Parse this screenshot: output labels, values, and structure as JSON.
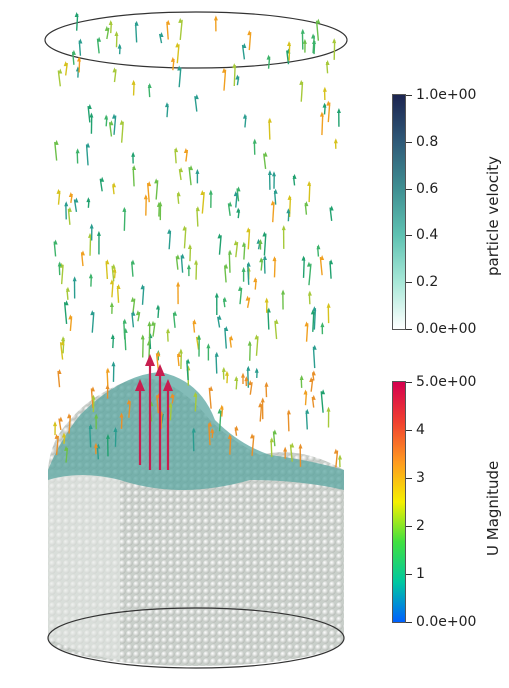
{
  "scene": {
    "description_icon": "cylinder-particle-bed-icon"
  },
  "colorbars": [
    {
      "title": "particle velocity",
      "ticks": [
        "1.0e+00",
        "0.8",
        "0.6",
        "0.4",
        "0.2",
        "0.0e+00"
      ],
      "range": [
        0,
        1
      ],
      "colors": [
        "#1c2450",
        "#2f5a78",
        "#3f8f92",
        "#5fc2b2",
        "#a8e8d8",
        "#ffffff"
      ]
    },
    {
      "title": "U Magnitude",
      "ticks": [
        "5.0e+00",
        "4",
        "3",
        "2",
        "1",
        "0.0e+00"
      ],
      "range": [
        0,
        5
      ],
      "colors": [
        "#d4004f",
        "#f04030",
        "#ff9a20",
        "#f5f000",
        "#40e040",
        "#00c8a0",
        "#0060ff"
      ]
    }
  ]
}
